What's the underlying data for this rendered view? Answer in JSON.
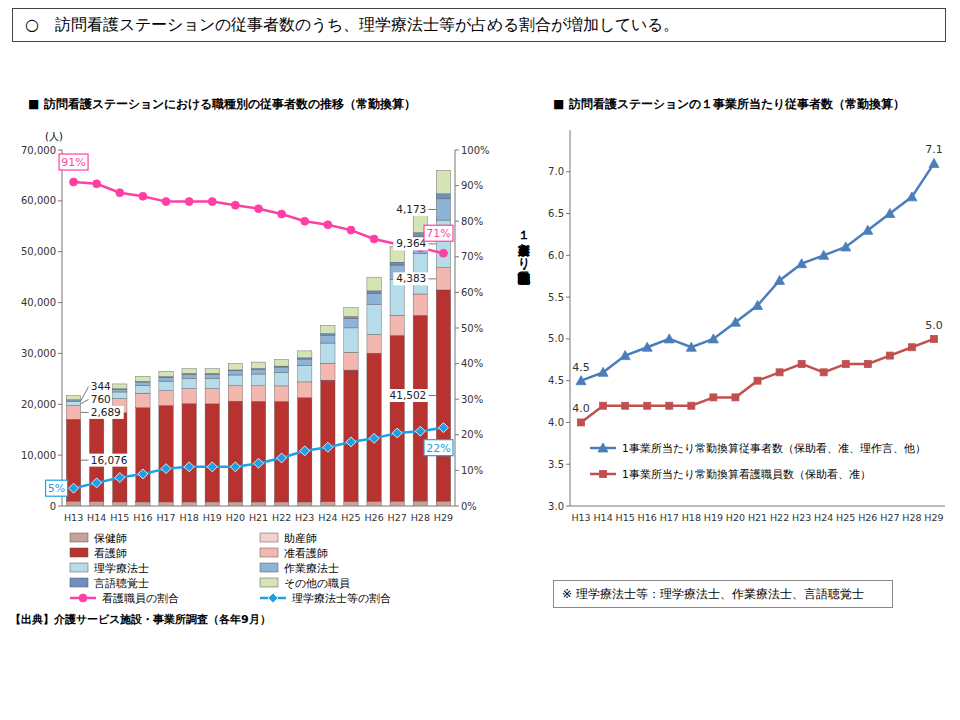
{
  "header": "○　訪問看護ステーションの従事者数のうち、理学療法士等が占める割合が増加している。",
  "source": "【出典】介護サービス施設・事業所調査（各年9月）",
  "note": "※ 理学療法士等：理学療法士、作業療法士、言語聴覚士",
  "chart_data": [
    {
      "type": "bar",
      "stacked": true,
      "grid": false,
      "legend": "bottom",
      "data_labels": true,
      "title": "■ 訪問看護ステーションにおける職種別の従事者数の推移（常勤換算）",
      "y_label": "(人)",
      "categories": [
        "H13",
        "H14",
        "H15",
        "H16",
        "H17",
        "H18",
        "H19",
        "H20",
        "H21",
        "H22",
        "H23",
        "H24",
        "H25",
        "H26",
        "H27",
        "H28",
        "H29"
      ],
      "ylim": [
        0,
        70000
      ],
      "yticks": [
        0,
        {
          "value": 10000,
          "label": "10,000"
        },
        {
          "value": 20000,
          "label": "20,000"
        },
        {
          "value": 30000,
          "label": "30,000"
        },
        {
          "value": 40000,
          "label": "40,000"
        },
        {
          "value": 50000,
          "label": "50,000"
        },
        {
          "value": 60000,
          "label": "60,000"
        },
        {
          "value": 70000,
          "label": "70,000"
        }
      ],
      "y2lim": [
        0,
        100
      ],
      "y2ticks": [
        {
          "value": 0,
          "label": "0%"
        },
        {
          "value": 10,
          "label": "10%"
        },
        {
          "value": 20,
          "label": "20%"
        },
        {
          "value": 30,
          "label": "30%"
        },
        {
          "value": 40,
          "label": "40%"
        },
        {
          "value": 50,
          "label": "50%"
        },
        {
          "value": 60,
          "label": "60%"
        },
        {
          "value": 70,
          "label": "70%"
        },
        {
          "value": 80,
          "label": "80%"
        },
        {
          "value": 90,
          "label": "90%"
        },
        {
          "value": 100,
          "label": "100%"
        }
      ],
      "series": [
        {
          "name": "保健師",
          "color": "#c9a09a",
          "values": [
            900,
            850,
            800,
            800,
            800,
            800,
            800,
            800,
            800,
            800,
            800,
            850,
            850,
            900,
            900,
            950,
            900
          ]
        },
        {
          "name": "助産師",
          "color": "#f4d0cf",
          "values": [
            80,
            70,
            60,
            60,
            60,
            60,
            60,
            50,
            50,
            50,
            50,
            50,
            60,
            60,
            70,
            70,
            75
          ]
        },
        {
          "name": "看護師",
          "color": "#b8322f",
          "values": [
            16076,
            17145,
            17460,
            18475,
            18898,
            19275,
            19225,
            19760,
            19731,
            19716,
            20450,
            23845,
            25815,
            29090,
            32565,
            36468,
            41502
          ],
          "value_labels": [
            "16,076",
            null,
            null,
            null,
            null,
            null,
            null,
            null,
            null,
            null,
            null,
            null,
            null,
            null,
            null,
            null,
            "41,502"
          ]
        },
        {
          "name": "准看護師",
          "color": "#f2b8b0",
          "values": [
            2689,
            2750,
            2800,
            2850,
            2900,
            2950,
            3000,
            3050,
            3050,
            3050,
            3100,
            3300,
            3500,
            3700,
            3950,
            4200,
            4383
          ],
          "value_labels": [
            "2,689",
            null,
            null,
            null,
            null,
            null,
            null,
            null,
            null,
            null,
            null,
            null,
            null,
            null,
            null,
            null,
            "4,383"
          ]
        },
        {
          "name": "理学療法士",
          "color": "#b5dce8",
          "values": [
            760,
            1000,
            1300,
            1560,
            1900,
            2030,
            2030,
            2100,
            2320,
            2660,
            3250,
            4000,
            4800,
            5850,
            7100,
            7900,
            9364
          ],
          "value_labels": [
            "760",
            null,
            null,
            null,
            null,
            null,
            null,
            null,
            null,
            null,
            null,
            null,
            null,
            null,
            null,
            null,
            "9,364"
          ]
        },
        {
          "name": "作業療法士",
          "color": "#8db3d6",
          "values": [
            344,
            450,
            550,
            640,
            760,
            810,
            810,
            840,
            920,
            1050,
            1250,
            1560,
            1850,
            2250,
            2800,
            3450,
            4173
          ],
          "value_labels": [
            "344",
            null,
            null,
            null,
            null,
            null,
            null,
            null,
            null,
            null,
            null,
            null,
            null,
            null,
            null,
            null,
            "4,173"
          ]
        },
        {
          "name": "言語聴覚士",
          "color": "#6e8fc0",
          "values": [
            24,
            45,
            70,
            95,
            123,
            130,
            130,
            140,
            156,
            178,
            228,
            298,
            370,
            450,
            555,
            725,
            983
          ]
        },
        {
          "name": "その他の職員",
          "color": "#d6e3b5",
          "values": [
            825,
            690,
            960,
            1020,
            1059,
            945,
            945,
            1260,
            1273,
            1296,
            1372,
            1597,
            1755,
            2700,
            3060,
            3737,
            4620
          ]
        },
        {
          "name": "看護職員の割合",
          "type": "line",
          "axis": "y2",
          "marker": "circle",
          "color": "#ff3fa4",
          "values": [
            91,
            90.5,
            88,
            87,
            85.5,
            85.5,
            85.5,
            84.5,
            83.5,
            82,
            80,
            79,
            77.5,
            75,
            73.5,
            72.5,
            71
          ],
          "value_labels": [
            "91%",
            null,
            null,
            null,
            null,
            null,
            null,
            null,
            null,
            null,
            null,
            null,
            null,
            null,
            null,
            null,
            "71%"
          ]
        },
        {
          "name": "理学療法士等の割合",
          "type": "line",
          "axis": "y2",
          "marker": "diamond",
          "color": "#1ea0e6",
          "values": [
            5,
            6.5,
            8,
            9,
            10.5,
            11,
            11,
            11,
            12,
            13.5,
            15.5,
            16.5,
            18,
            19,
            20.5,
            21,
            22
          ],
          "value_labels": [
            "5%",
            null,
            null,
            null,
            null,
            null,
            null,
            null,
            null,
            null,
            null,
            null,
            null,
            null,
            null,
            null,
            "22%"
          ]
        }
      ]
    },
    {
      "type": "line",
      "grid": false,
      "legend": "inside",
      "data_labels": true,
      "title": "■ 訪問看護ステーションの１事業所当たり従事者数（常勤換算）",
      "y_label": "１事業所当たり常勤換算従事者数・常勤換算看護職員数",
      "categories": [
        "H13",
        "H14",
        "H15",
        "H16",
        "H17",
        "H18",
        "H19",
        "H20",
        "H21",
        "H22",
        "H23",
        "H24",
        "H25",
        "H26",
        "H27",
        "H28",
        "H29"
      ],
      "ylim": [
        3,
        7.5
      ],
      "yticks": [
        {
          "value": 3,
          "label": "3.0"
        },
        3.5,
        {
          "value": 4,
          "label": "4.0"
        },
        4.5,
        {
          "value": 5,
          "label": "5.0"
        },
        5.5,
        {
          "value": 6,
          "label": "6.0"
        },
        6.5,
        {
          "value": 7,
          "label": "7.0"
        }
      ],
      "series": [
        {
          "name": "1事業所当たり常勤換算従事者数（保助看、准、理作言、他）",
          "marker": "triangle",
          "color": "#4a7ebb",
          "values": [
            4.5,
            4.6,
            4.8,
            4.9,
            5.0,
            4.9,
            5.0,
            5.2,
            5.4,
            5.7,
            5.9,
            6.0,
            6.1,
            6.3,
            6.5,
            6.7,
            7.1
          ],
          "value_labels": [
            "4.5",
            null,
            null,
            null,
            null,
            null,
            null,
            null,
            null,
            null,
            null,
            null,
            null,
            null,
            null,
            null,
            "7.1"
          ]
        },
        {
          "name": "1事業所当たり常勤換算看護職員数（保助看、准）",
          "marker": "square",
          "color": "#c0504d",
          "values": [
            4.0,
            4.2,
            4.2,
            4.2,
            4.2,
            4.2,
            4.3,
            4.3,
            4.5,
            4.6,
            4.7,
            4.6,
            4.7,
            4.7,
            4.8,
            4.9,
            5.0
          ],
          "value_labels": [
            "4.0",
            null,
            null,
            null,
            null,
            null,
            null,
            null,
            null,
            null,
            null,
            null,
            null,
            null,
            null,
            null,
            "5.0"
          ]
        }
      ]
    }
  ]
}
